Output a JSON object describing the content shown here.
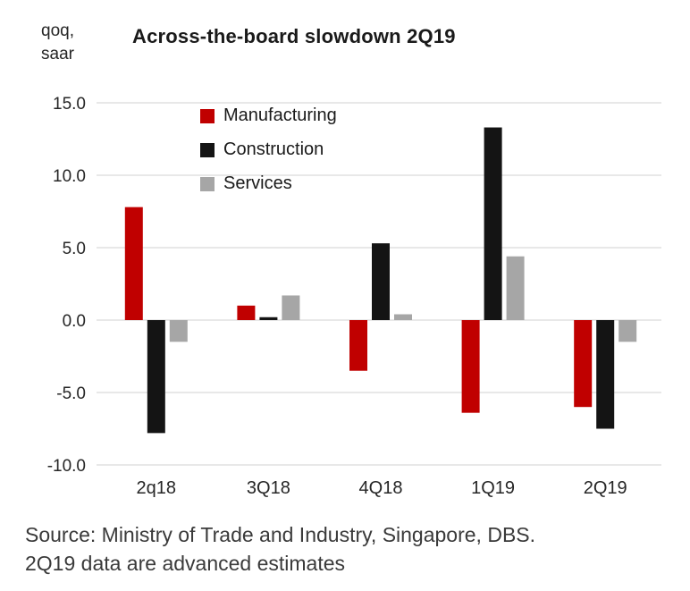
{
  "axis_unit_label": "qoq,\nsaar",
  "source_note": {
    "line1": "Source: Ministry of Trade and Industry, Singapore, DBS.",
    "line2": "2Q19 data are advanced estimates"
  },
  "chart_data": {
    "type": "bar",
    "title": "Across-the-board slowdown 2Q19",
    "ylabel": "qoq, saar",
    "categories": [
      "2q18",
      "3Q18",
      "4Q18",
      "1Q19",
      "2Q19"
    ],
    "series": [
      {
        "name": "Manufacturing",
        "color": "#C00000",
        "values": [
          7.8,
          1.0,
          -3.5,
          -6.4,
          -6.0
        ]
      },
      {
        "name": "Construction",
        "color": "#141414",
        "values": [
          -7.8,
          0.2,
          5.3,
          13.3,
          -7.5
        ]
      },
      {
        "name": "Services",
        "color": "#A6A6A6",
        "values": [
          -1.5,
          1.7,
          0.4,
          4.4,
          -1.5
        ]
      }
    ],
    "ylim": [
      -10,
      15
    ],
    "yticks": [
      15.0,
      10.0,
      5.0,
      0.0,
      -5.0,
      -10.0
    ],
    "grid": true,
    "legend_position": "top-left-inside",
    "colors": {
      "gridline": "#D9D9D9",
      "tick_text": "#262626"
    }
  }
}
